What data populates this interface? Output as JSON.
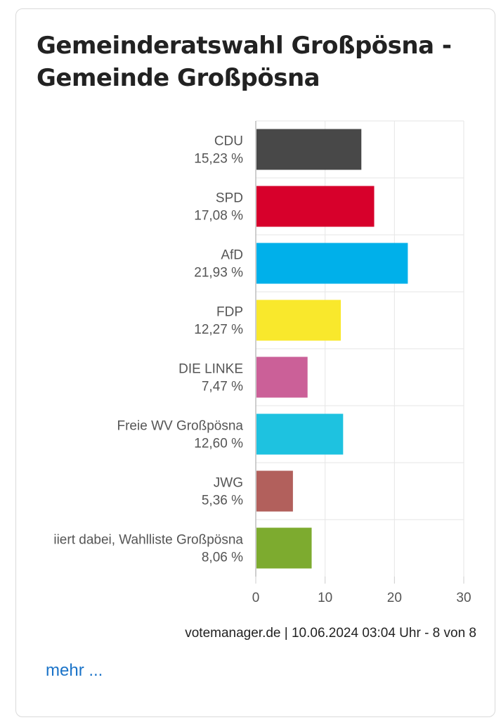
{
  "header": {
    "title_line1": "Gemeinderatswahl Großpösna -",
    "title_line2": "Gemeinde Großpösna"
  },
  "chart_data": {
    "type": "bar",
    "orientation": "horizontal",
    "categories": [
      "CDU",
      "SPD",
      "AfD",
      "FDP",
      "DIE LINKE",
      "Freie WV Großpösna",
      "JWG",
      "iiert dabei, Wahlliste Großpösna"
    ],
    "value_labels": [
      "15,23 %",
      "17,08 %",
      "21,93 %",
      "12,27 %",
      "7,47 %",
      "12,60 %",
      "5,36 %",
      "8,06 %"
    ],
    "values": [
      15.23,
      17.08,
      21.93,
      12.27,
      7.47,
      12.6,
      5.36,
      8.06
    ],
    "colors": [
      "#484848",
      "#d7002b",
      "#00b0ea",
      "#f9e82c",
      "#cb6098",
      "#1ec2e0",
      "#b2605c",
      "#7dab2f"
    ],
    "xlim": [
      0,
      30
    ],
    "xticks": [
      "0",
      "10",
      "20",
      "30"
    ],
    "grid": true
  },
  "footer": {
    "source": "votemanager.de | 10.06.2024 03:04 Uhr - 8 von 8",
    "more_link": "mehr ..."
  }
}
